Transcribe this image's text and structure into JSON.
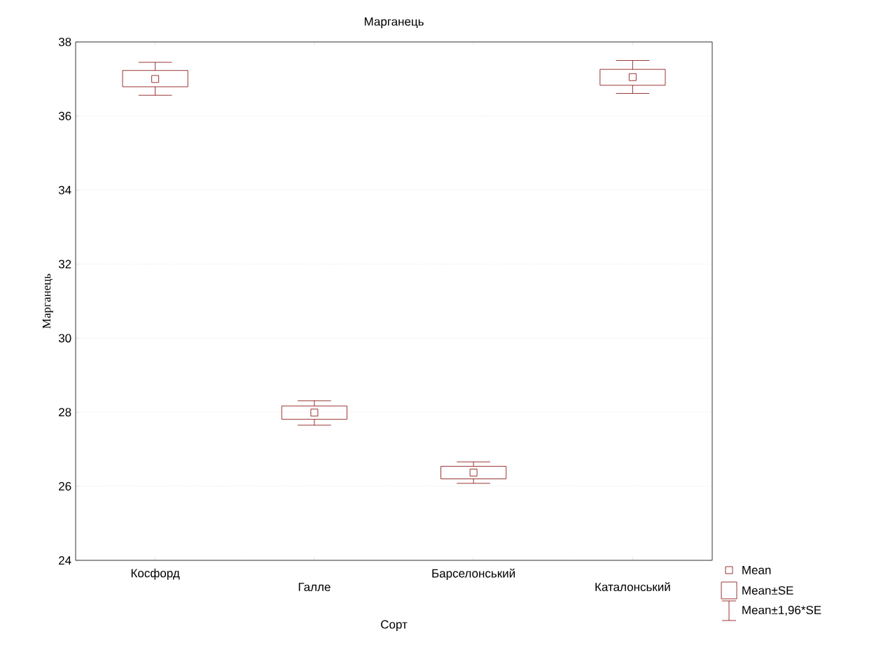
{
  "chart_data": {
    "type": "box",
    "title": "Марганець",
    "xlabel": "Сорт",
    "ylabel": "Марганець",
    "categories": [
      "Косфорд",
      "Галле",
      "Барселонський",
      "Каталонський"
    ],
    "boxes": [
      {
        "low": 36.56,
        "q1": 36.79,
        "median": 37.0,
        "q3": 37.23,
        "high": 37.45
      },
      {
        "low": 27.65,
        "q1": 27.81,
        "median": 27.99,
        "q3": 28.17,
        "high": 28.31
      },
      {
        "low": 26.08,
        "q1": 26.2,
        "median": 26.37,
        "q3": 26.54,
        "high": 26.66
      },
      {
        "low": 36.61,
        "q1": 36.83,
        "median": 37.05,
        "q3": 37.26,
        "high": 37.5
      }
    ],
    "color": "#800000",
    "marker": "square",
    "ylim": [
      24,
      38
    ],
    "yticks": [
      24,
      26,
      28,
      30,
      32,
      34,
      36,
      38
    ],
    "grid": "y",
    "annotations": [
      "Mean",
      "Mean±SE",
      "Mean±1,96*SE"
    ]
  }
}
